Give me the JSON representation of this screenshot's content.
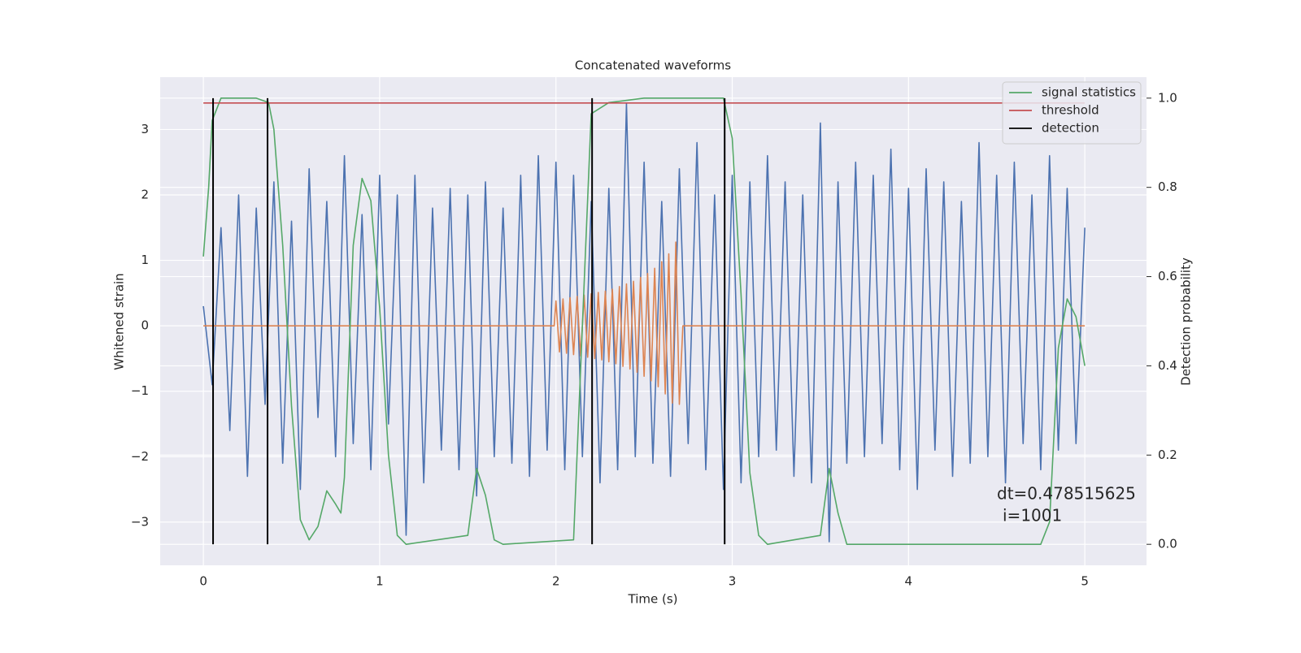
{
  "chart_data": {
    "type": "line",
    "title": "Concatenated waveforms",
    "xlabel": "Time (s)",
    "ylabel": "Whitened strain",
    "y2label": "Detection probability",
    "xlim": [
      -0.245,
      5.35
    ],
    "ylim": [
      -3.66,
      3.8
    ],
    "y2lim": [
      -0.047,
      1.047
    ],
    "xticks": [
      0,
      1,
      2,
      3,
      4,
      5
    ],
    "yticks": [
      {
        "value": -3,
        "label": "−3"
      },
      {
        "value": -2,
        "label": "−2"
      },
      {
        "value": -1,
        "label": "−1"
      },
      0,
      1,
      2,
      3
    ],
    "y2ticks": [
      {
        "value": 0,
        "label": "0.0"
      },
      0.2,
      0.4,
      0.6,
      0.8,
      {
        "value": 1,
        "label": "1.0"
      }
    ],
    "grid": true,
    "background": "#eaeaf2",
    "legend": "upper right",
    "annotation": [
      "dt=0.478515625",
      "i=1001"
    ],
    "series": [
      {
        "kind": "line",
        "color": "#4c72b0",
        "x": [
          0,
          0.05,
          0.1,
          0.15,
          0.2,
          0.25,
          0.3,
          0.35,
          0.4,
          0.45,
          0.5,
          0.55,
          0.6,
          0.65,
          0.7,
          0.75,
          0.8,
          0.85,
          0.9,
          0.95,
          1.0,
          1.05,
          1.1,
          1.15,
          1.2,
          1.25,
          1.3,
          1.35,
          1.4,
          1.45,
          1.5,
          1.55,
          1.6,
          1.65,
          1.7,
          1.75,
          1.8,
          1.85,
          1.9,
          1.95,
          2.0,
          2.05,
          2.1,
          2.15,
          2.2,
          2.25,
          2.3,
          2.35,
          2.4,
          2.45,
          2.5,
          2.55,
          2.6,
          2.65,
          2.7,
          2.75,
          2.8,
          2.85,
          2.9,
          2.95,
          3.0,
          3.05,
          3.1,
          3.15,
          3.2,
          3.25,
          3.3,
          3.35,
          3.4,
          3.45,
          3.5,
          3.55,
          3.6,
          3.65,
          3.7,
          3.75,
          3.8,
          3.85,
          3.9,
          3.95,
          4.0,
          4.05,
          4.1,
          4.15,
          4.2,
          4.25,
          4.3,
          4.35,
          4.4,
          4.45,
          4.5,
          4.55,
          4.6,
          4.65,
          4.7,
          4.75,
          4.8,
          4.85,
          4.9,
          4.95,
          5.0
        ],
        "values": [
          0.3,
          -0.9,
          1.5,
          -1.6,
          2.0,
          -2.3,
          1.8,
          -1.2,
          2.2,
          -2.1,
          1.6,
          -2.5,
          2.4,
          -1.4,
          1.9,
          -2.0,
          2.6,
          -1.8,
          1.7,
          -2.2,
          2.3,
          -1.5,
          2.0,
          -3.2,
          2.3,
          -2.4,
          1.8,
          -1.9,
          2.1,
          -2.2,
          2.0,
          -2.6,
          2.2,
          -2.0,
          1.8,
          -2.1,
          2.3,
          -2.3,
          2.6,
          -1.9,
          2.5,
          -2.2,
          2.3,
          -2.0,
          1.9,
          -2.4,
          2.1,
          -2.2,
          3.4,
          -2.0,
          2.5,
          -2.1,
          1.9,
          -2.3,
          2.4,
          -1.8,
          2.8,
          -2.2,
          2.0,
          -2.5,
          2.3,
          -2.4,
          2.2,
          -2.0,
          2.6,
          -1.9,
          2.2,
          -2.3,
          2.0,
          -2.4,
          3.1,
          -3.3,
          2.2,
          -2.1,
          2.5,
          -2.0,
          2.3,
          -1.8,
          2.7,
          -2.2,
          2.1,
          -2.5,
          2.4,
          -1.9,
          2.2,
          -2.3,
          1.9,
          -2.1,
          2.8,
          -2.0,
          2.3,
          -2.4,
          2.5,
          -1.8,
          2.0,
          -2.2,
          2.6,
          -1.9,
          2.1,
          -1.8,
          1.5
        ]
      },
      {
        "kind": "line",
        "color": "#dd8452",
        "x": [
          0,
          1.99,
          2.0,
          2.02,
          2.04,
          2.06,
          2.08,
          2.1,
          2.12,
          2.14,
          2.16,
          2.18,
          2.2,
          2.22,
          2.24,
          2.26,
          2.28,
          2.3,
          2.32,
          2.34,
          2.36,
          2.38,
          2.4,
          2.42,
          2.44,
          2.46,
          2.48,
          2.5,
          2.52,
          2.54,
          2.56,
          2.58,
          2.6,
          2.62,
          2.64,
          2.66,
          2.68,
          2.7,
          2.72,
          5
        ],
        "values": [
          0,
          0,
          0.38,
          -0.4,
          0.41,
          -0.42,
          0.43,
          -0.44,
          0.45,
          -0.46,
          0.47,
          -0.48,
          0.49,
          -0.5,
          0.51,
          -0.52,
          0.53,
          -0.55,
          0.56,
          -0.58,
          0.6,
          -0.62,
          0.64,
          -0.66,
          0.68,
          -0.71,
          0.74,
          -0.77,
          0.8,
          -0.84,
          0.88,
          -0.93,
          0.98,
          -1.04,
          1.1,
          -1.18,
          1.28,
          -1.2,
          0,
          0
        ]
      },
      {
        "kind": "line",
        "name": "signal statistics",
        "color": "#55a868",
        "axis": "y2",
        "x": [
          0,
          0.03,
          0.05,
          0.1,
          0.3,
          0.37,
          0.4,
          0.45,
          0.5,
          0.55,
          0.6,
          0.65,
          0.7,
          0.75,
          0.78,
          0.8,
          0.85,
          0.9,
          0.95,
          1.0,
          1.05,
          1.1,
          1.15,
          1.5,
          1.55,
          1.6,
          1.65,
          1.7,
          2.1,
          2.15,
          2.2,
          2.3,
          2.5,
          2.95,
          3.0,
          3.05,
          3.1,
          3.15,
          3.2,
          3.5,
          3.55,
          3.6,
          3.65,
          4.75,
          4.8,
          4.85,
          4.9,
          4.95,
          5.0
        ],
        "values": [
          0.645,
          0.8,
          0.95,
          1.0,
          1.0,
          0.99,
          0.93,
          0.67,
          0.31,
          0.055,
          0.01,
          0.04,
          0.12,
          0.09,
          0.07,
          0.15,
          0.67,
          0.82,
          0.77,
          0.53,
          0.2,
          0.02,
          0.0,
          0.02,
          0.17,
          0.11,
          0.01,
          0.0,
          0.01,
          0.49,
          0.965,
          0.99,
          1.0,
          1.0,
          0.91,
          0.56,
          0.16,
          0.02,
          0.0,
          0.02,
          0.17,
          0.07,
          0.0,
          0.0,
          0.05,
          0.44,
          0.55,
          0.51,
          0.4
        ]
      },
      {
        "kind": "line",
        "name": "threshold",
        "color": "#c44e52",
        "axis": "y2",
        "x": [
          0,
          5
        ],
        "values": [
          0.989,
          0.989
        ]
      },
      {
        "kind": "vlines",
        "name": "detection",
        "color": "#000000",
        "axis": "y2",
        "x": [
          0.055,
          0.364,
          2.205,
          2.957
        ],
        "values": [
          1,
          1,
          1,
          1
        ]
      }
    ]
  }
}
